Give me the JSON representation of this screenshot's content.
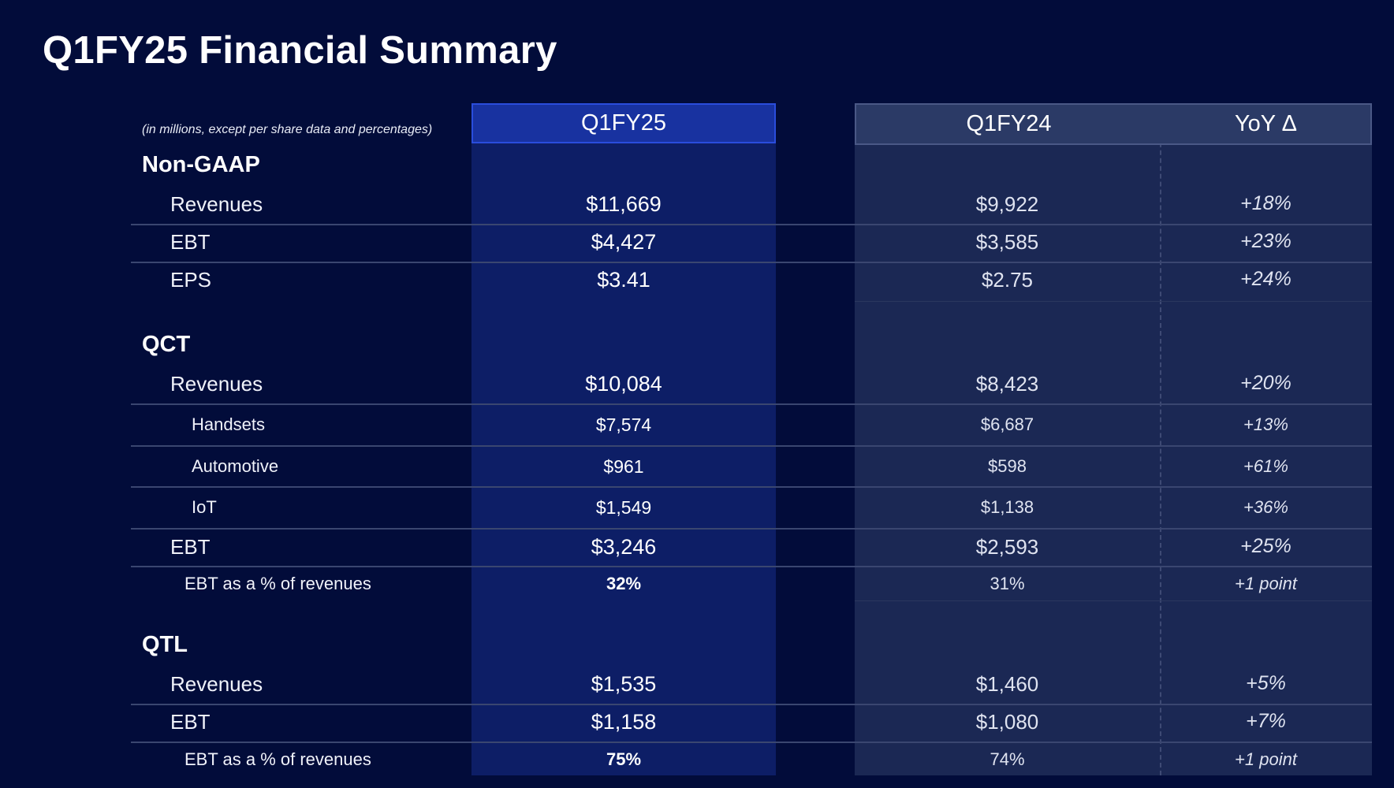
{
  "title": "Q1FY25 Financial Summary",
  "note": "(in millions, except per share data and percentages)",
  "columns": {
    "current": "Q1FY25",
    "prior": "Q1FY24",
    "yoy": "YoY Δ"
  },
  "sections": [
    {
      "name": "Non-GAAP",
      "rows": [
        {
          "label": "Revenues",
          "current": "$11,669",
          "prior": "$9,922",
          "yoy": "+18%"
        },
        {
          "label": "EBT",
          "current": "$4,427",
          "prior": "$3,585",
          "yoy": "+23%"
        },
        {
          "label": "EPS",
          "current": "$3.41",
          "prior": "$2.75",
          "yoy": "+24%"
        }
      ]
    },
    {
      "name": "QCT",
      "rows": [
        {
          "label": "Revenues",
          "current": "$10,084",
          "prior": "$8,423",
          "yoy": "+20%"
        },
        {
          "label": "Handsets",
          "current": "$7,574",
          "prior": "$6,687",
          "yoy": "+13%"
        },
        {
          "label": "Automotive",
          "current": "$961",
          "prior": "$598",
          "yoy": "+61%"
        },
        {
          "label": "IoT",
          "current": "$1,549",
          "prior": "$1,138",
          "yoy": "+36%"
        },
        {
          "label": "EBT",
          "current": "$3,246",
          "prior": "$2,593",
          "yoy": "+25%"
        },
        {
          "label": "EBT as a % of revenues",
          "current": "32%",
          "prior": "31%",
          "yoy": "+1 point"
        }
      ]
    },
    {
      "name": "QTL",
      "rows": [
        {
          "label": "Revenues",
          "current": "$1,535",
          "prior": "$1,460",
          "yoy": "+5%"
        },
        {
          "label": "EBT",
          "current": "$1,158",
          "prior": "$1,080",
          "yoy": "+7%"
        },
        {
          "label": "EBT as a % of revenues",
          "current": "75%",
          "prior": "74%",
          "yoy": "+1 point"
        }
      ]
    }
  ],
  "colors": {
    "background": "#020c3a",
    "current_column": "#0d1e66",
    "current_header": "#1832a0",
    "prior_column": "#1b2854",
    "prior_header": "#2b3a66"
  }
}
